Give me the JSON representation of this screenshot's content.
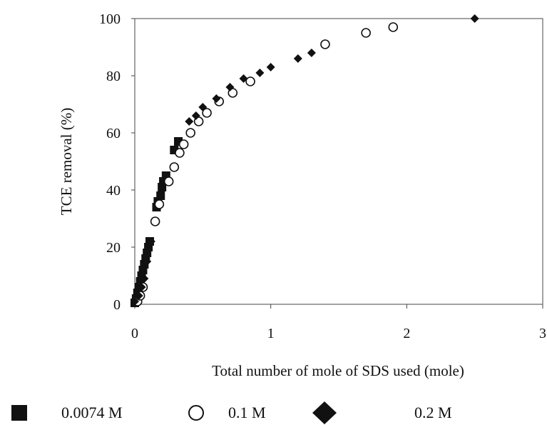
{
  "chart_data": {
    "type": "scatter",
    "title": "",
    "xlabel": "Total number of mole of SDS used (mole)",
    "ylabel": "TCE removal (%)",
    "xlim": [
      0,
      3
    ],
    "ylim": [
      0,
      100
    ],
    "xticks": [
      "0",
      "1",
      "2",
      "3"
    ],
    "yticks": [
      "0",
      "20",
      "40",
      "60",
      "80",
      "100"
    ],
    "grid": false,
    "legend_position": "bottom",
    "series": [
      {
        "name": "0.0074 M",
        "marker": "square",
        "color": "#111111",
        "points": [
          [
            0.0,
            0.5
          ],
          [
            0.01,
            2
          ],
          [
            0.02,
            4
          ],
          [
            0.03,
            6
          ],
          [
            0.04,
            8
          ],
          [
            0.05,
            10
          ],
          [
            0.06,
            12
          ],
          [
            0.07,
            14
          ],
          [
            0.08,
            16
          ],
          [
            0.09,
            18
          ],
          [
            0.1,
            20
          ],
          [
            0.11,
            22
          ],
          [
            0.16,
            34
          ],
          [
            0.17,
            36
          ],
          [
            0.19,
            38
          ],
          [
            0.2,
            41
          ],
          [
            0.21,
            43
          ],
          [
            0.23,
            45
          ],
          [
            0.29,
            54
          ],
          [
            0.32,
            57
          ]
        ]
      },
      {
        "name": "0.1 M",
        "marker": "circle-open",
        "color": "#111111",
        "points": [
          [
            0.02,
            1
          ],
          [
            0.04,
            3
          ],
          [
            0.06,
            6
          ],
          [
            0.15,
            29
          ],
          [
            0.18,
            35
          ],
          [
            0.25,
            43
          ],
          [
            0.29,
            48
          ],
          [
            0.33,
            53
          ],
          [
            0.36,
            56
          ],
          [
            0.41,
            60
          ],
          [
            0.47,
            64
          ],
          [
            0.53,
            67
          ],
          [
            0.62,
            71
          ],
          [
            0.72,
            74
          ],
          [
            0.85,
            78
          ],
          [
            1.4,
            91
          ],
          [
            1.7,
            95
          ],
          [
            1.9,
            97
          ]
        ]
      },
      {
        "name": "0.2 M",
        "marker": "diamond",
        "color": "#111111",
        "points": [
          [
            0.0,
            1
          ],
          [
            0.03,
            3
          ],
          [
            0.05,
            6
          ],
          [
            0.07,
            9
          ],
          [
            0.09,
            15
          ],
          [
            0.12,
            22
          ],
          [
            0.4,
            64
          ],
          [
            0.45,
            66
          ],
          [
            0.5,
            69
          ],
          [
            0.6,
            72
          ],
          [
            0.7,
            76
          ],
          [
            0.8,
            79
          ],
          [
            0.92,
            81
          ],
          [
            1.0,
            83
          ],
          [
            1.2,
            86
          ],
          [
            1.3,
            88
          ],
          [
            2.5,
            100
          ]
        ]
      }
    ]
  }
}
